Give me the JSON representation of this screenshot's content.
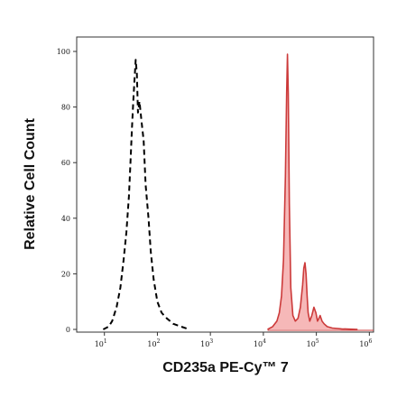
{
  "chart_data": {
    "type": "area",
    "title": "",
    "xlabel": "CD235a PE-Cy™ 7",
    "ylabel": "Relative Cell Count",
    "xscale": "log",
    "xlim": [
      3,
      1200000
    ],
    "ylim": [
      0,
      100
    ],
    "yticks": [
      0,
      20,
      40,
      60,
      80,
      100
    ],
    "xticks": [
      {
        "value": 10,
        "base": "10",
        "exp": "1"
      },
      {
        "value": 100,
        "base": "10",
        "exp": "2"
      },
      {
        "value": 1000,
        "base": "10",
        "exp": "3"
      },
      {
        "value": 10000,
        "base": "10",
        "exp": "4"
      },
      {
        "value": 100000,
        "base": "10",
        "exp": "5"
      },
      {
        "value": 1000000,
        "base": "10",
        "exp": "6"
      }
    ],
    "colors": {
      "stained_line": "#cc3a3a",
      "stained_fill": "#f6b8b8",
      "control_line": "#000000"
    },
    "series": [
      {
        "style": "dashed-outline",
        "x": [
          9.5,
          12,
          14,
          17,
          20,
          23,
          26,
          29,
          31,
          33,
          35,
          37,
          39,
          41,
          43,
          46,
          50,
          55,
          60,
          68,
          75,
          85,
          100,
          120,
          150,
          200,
          280,
          400
        ],
        "y": [
          0,
          1,
          3,
          8,
          15,
          25,
          35,
          48,
          60,
          72,
          82,
          90,
          97,
          92,
          78,
          82,
          75,
          68,
          52,
          40,
          28,
          18,
          10,
          6,
          4,
          2,
          1,
          0
        ]
      },
      {
        "style": "filled",
        "x": [
          12000,
          15000,
          18000,
          20000,
          22000,
          24000,
          26000,
          27500,
          28500,
          29500,
          31000,
          33000,
          36000,
          40000,
          45000,
          50000,
          55000,
          58000,
          61000,
          64000,
          67000,
          70000,
          75000,
          82000,
          90000,
          98000,
          105000,
          112000,
          118000,
          128000,
          140000,
          160000,
          200000,
          300000,
          600000
        ],
        "y": [
          0,
          1,
          3,
          6,
          12,
          25,
          55,
          85,
          99,
          85,
          45,
          15,
          5,
          3,
          4,
          8,
          16,
          22,
          24,
          20,
          12,
          6,
          3,
          5,
          8,
          6,
          3,
          4,
          5,
          3,
          2,
          1,
          0.5,
          0.2,
          0
        ]
      }
    ]
  }
}
